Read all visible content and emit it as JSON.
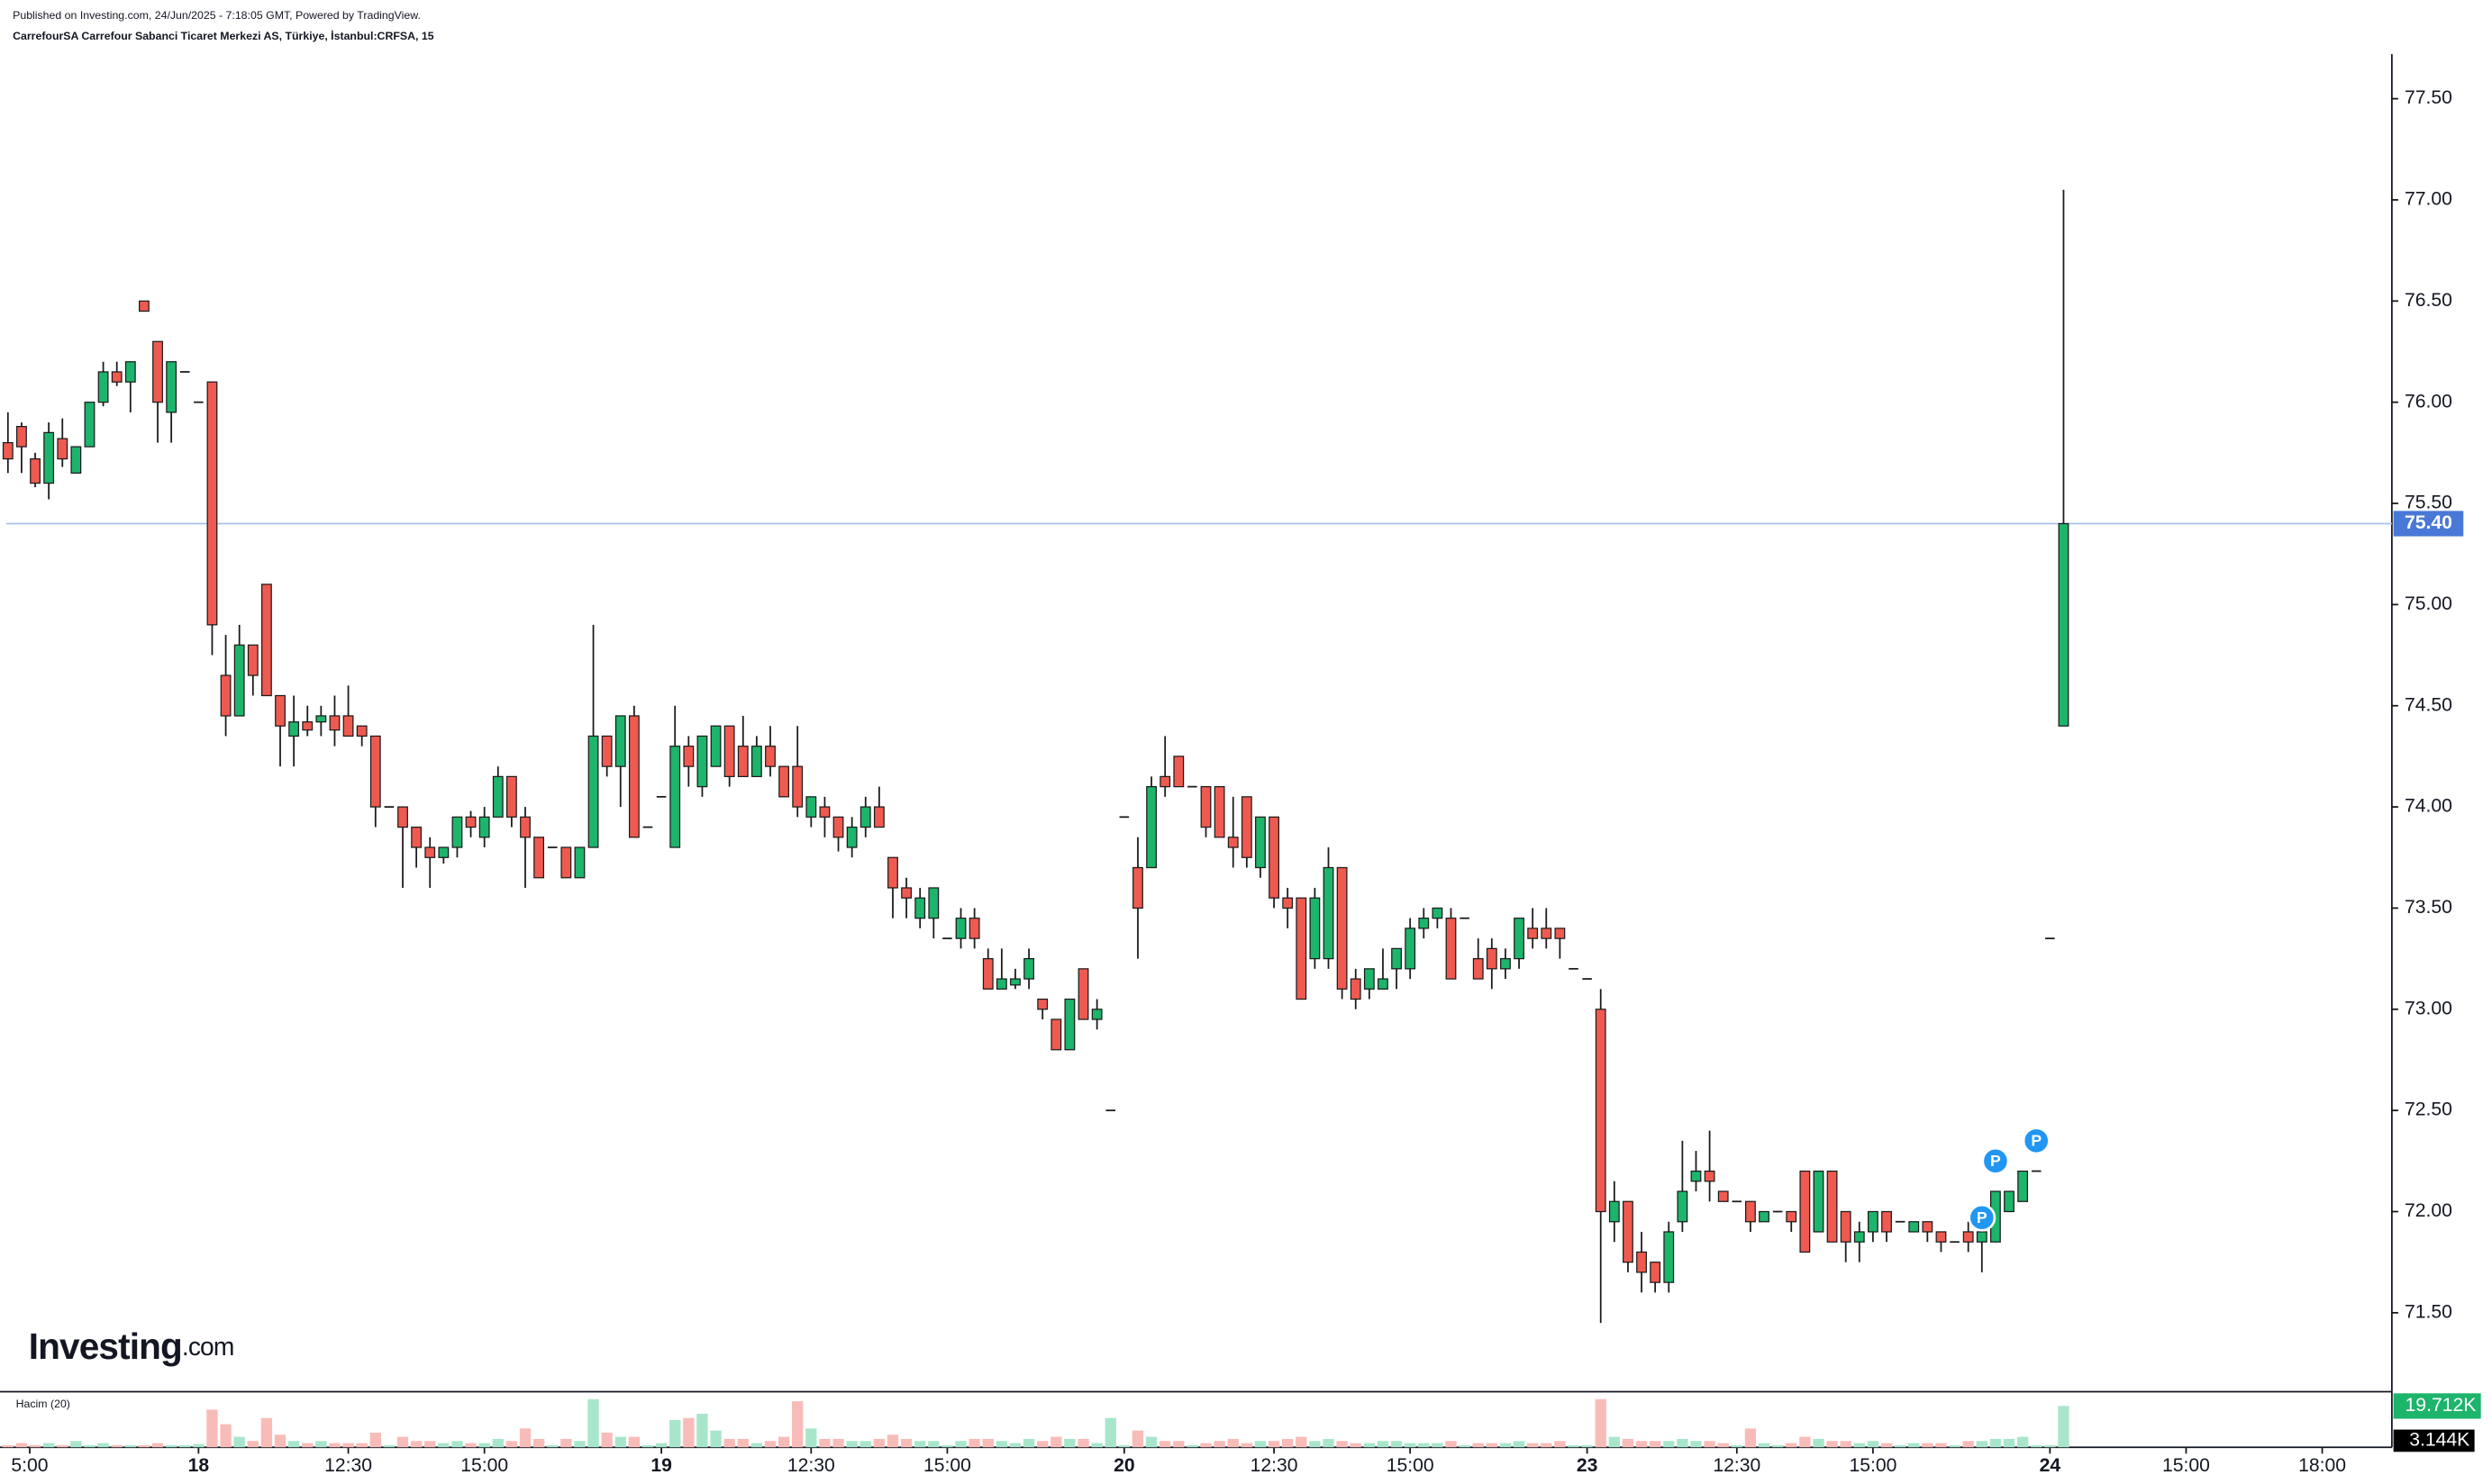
{
  "chart_data": {
    "type": "candlestick",
    "subtitle": "Published on Investing.com, 24/Jun/2025 - 7:18:05 GMT, Powered by TradingView.",
    "title": "CarrefourSA Carrefour Sabanci Ticaret Merkezi AS, Türkiye, İstanbul:CRFSA, 15",
    "watermark": {
      "main": "Investing",
      "suffix": ".com"
    },
    "grid": false,
    "x": [
      -14,
      -13,
      -12,
      -11,
      -10,
      -9,
      -8,
      -7,
      -6,
      -5,
      -4,
      -3,
      -2,
      -1,
      0,
      1,
      2,
      3,
      4,
      5,
      6,
      7,
      8,
      9,
      10,
      11,
      12,
      13,
      14,
      15,
      16,
      17,
      18,
      19,
      20,
      21,
      22,
      23,
      24,
      25,
      26,
      27,
      28,
      29,
      30,
      31,
      32,
      33,
      34,
      35,
      36,
      37,
      38,
      39,
      40,
      41,
      42,
      43,
      44,
      45,
      46,
      47,
      48,
      49,
      50,
      51,
      52,
      53,
      54,
      55,
      56,
      57,
      58,
      59,
      60,
      61,
      62,
      63,
      64,
      65,
      66,
      67,
      68,
      69,
      70,
      71,
      72,
      73,
      74,
      75,
      76,
      77,
      78,
      79,
      80,
      81,
      82,
      83,
      84,
      85,
      86,
      87,
      88,
      89,
      90,
      91,
      92,
      93,
      94,
      95,
      96,
      97,
      98,
      99,
      100,
      101,
      102,
      103,
      104,
      105,
      106,
      107,
      108,
      109,
      110,
      111,
      112,
      113,
      114,
      115,
      116,
      117,
      118,
      119,
      120,
      121,
      122,
      123,
      124,
      125,
      126,
      127,
      128,
      129,
      130,
      131,
      132,
      133,
      134,
      135,
      136,
      137
    ],
    "xlim": [
      -14,
      161
    ],
    "xticks": [
      {
        "value": -12.4,
        "label": "5:00"
      },
      {
        "value": 0,
        "label": "18"
      },
      {
        "value": 11,
        "label": "12:30"
      },
      {
        "value": 21,
        "label": "15:00"
      },
      {
        "value": 34,
        "label": "19"
      },
      {
        "value": 45,
        "label": "12:30"
      },
      {
        "value": 55,
        "label": "15:00"
      },
      {
        "value": 68,
        "label": "20"
      },
      {
        "value": 79,
        "label": "12:30"
      },
      {
        "value": 89,
        "label": "15:00"
      },
      {
        "value": 102,
        "label": "23"
      },
      {
        "value": 113,
        "label": "12:30"
      },
      {
        "value": 123,
        "label": "15:00"
      },
      {
        "value": 136,
        "label": "24"
      },
      {
        "value": 146,
        "label": "15:00"
      },
      {
        "value": 156,
        "label": "18:00"
      }
    ],
    "ylim": [
      71.11,
      77.72
    ],
    "yticks": [
      {
        "value": 71.5,
        "label": "71.50"
      },
      {
        "value": 72,
        "label": "72.00"
      },
      {
        "value": 72.5,
        "label": "72.50"
      },
      {
        "value": 73,
        "label": "73.00"
      },
      {
        "value": 73.5,
        "label": "73.50"
      },
      {
        "value": 74,
        "label": "74.00"
      },
      {
        "value": 74.5,
        "label": "74.50"
      },
      {
        "value": 75,
        "label": "75.00"
      },
      {
        "value": 75.5,
        "label": "75.50"
      },
      {
        "value": 76,
        "label": "76.00"
      },
      {
        "value": 76.5,
        "label": "76.50"
      },
      {
        "value": 77,
        "label": "77.00"
      },
      {
        "value": 77.5,
        "label": "77.50"
      }
    ],
    "y2lim": [
      0,
      25.8
    ],
    "price_line": {
      "value": 75.4,
      "label": "75.40",
      "color": "#4a78d6"
    },
    "volume_ma": {
      "value": 3.144,
      "label": "3.144K"
    },
    "markers": [
      {
        "x": 131,
        "y": 71.97,
        "label": "P"
      },
      {
        "x": 132,
        "y": 72.25,
        "label": "P"
      },
      {
        "x": 135,
        "y": 72.35,
        "label": "P"
      }
    ],
    "series": [
      {
        "up_color": "#1db46c",
        "down_color": "#ef5a50",
        "open": [
          75.8,
          75.88,
          75.72,
          75.6,
          75.82,
          75.65,
          75.78,
          76.0,
          76.15,
          76.1,
          76.5,
          76.3,
          75.95,
          76.15,
          76.0,
          76.1,
          74.65,
          74.45,
          74.8,
          75.1,
          74.55,
          74.35,
          74.42,
          74.42,
          74.45,
          74.45,
          74.4,
          74.35,
          74.0,
          74.0,
          73.9,
          73.8,
          73.75,
          73.8,
          73.95,
          73.85,
          73.95,
          74.15,
          73.95,
          73.85,
          73.8,
          73.8,
          73.65,
          73.8,
          74.35,
          74.2,
          74.45,
          73.9,
          74.05,
          73.8,
          74.3,
          74.1,
          74.2,
          74.4,
          74.3,
          74.15,
          74.3,
          74.2,
          74.2,
          73.95,
          74.0,
          73.95,
          73.8,
          73.9,
          74.0,
          73.75,
          73.6,
          73.45,
          73.45,
          73.35,
          73.35,
          73.45,
          73.25,
          73.1,
          73.12,
          73.15,
          73.05,
          72.95,
          72.8,
          73.2,
          72.95,
          72.5,
          73.95,
          73.7,
          73.7,
          74.15,
          74.25,
          74.1,
          74.1,
          74.1,
          73.85,
          74.05,
          73.7,
          73.95,
          73.55,
          73.55,
          73.25,
          73.25,
          73.7,
          73.15,
          73.1,
          73.1,
          73.2,
          73.2,
          73.4,
          73.45,
          73.45,
          73.45,
          73.25,
          73.3,
          73.2,
          73.25,
          73.4,
          73.4,
          73.4,
          73.2,
          73.15,
          73.0,
          71.95,
          72.05,
          71.8,
          71.75,
          71.65,
          71.95,
          72.15,
          72.2,
          72.1,
          72.05,
          72.05,
          71.95,
          72.0,
          72.0,
          72.2,
          71.9,
          72.2,
          72.0,
          71.85,
          71.9,
          72.0,
          71.95,
          71.9,
          71.95,
          71.9,
          71.85,
          71.9,
          71.85,
          71.85,
          72.0,
          72.05,
          72.2,
          73.35,
          74.4
        ],
        "high": [
          75.95,
          75.9,
          75.75,
          75.9,
          75.92,
          75.78,
          76.0,
          76.2,
          76.2,
          76.2,
          76.5,
          76.3,
          76.2,
          76.15,
          76.0,
          76.1,
          74.85,
          74.9,
          74.8,
          75.1,
          74.55,
          74.55,
          74.5,
          74.5,
          74.55,
          74.6,
          74.4,
          74.35,
          74.0,
          74.0,
          73.9,
          73.85,
          73.8,
          73.95,
          73.98,
          74.0,
          74.2,
          74.15,
          74.0,
          73.85,
          73.8,
          73.8,
          73.8,
          74.9,
          74.35,
          74.45,
          74.5,
          73.9,
          74.05,
          74.5,
          74.35,
          74.35,
          74.4,
          74.4,
          74.45,
          74.35,
          74.4,
          74.2,
          74.4,
          74.05,
          74.05,
          73.95,
          73.95,
          74.05,
          74.1,
          73.75,
          73.65,
          73.6,
          73.6,
          73.35,
          73.5,
          73.5,
          73.3,
          73.3,
          73.2,
          73.3,
          73.05,
          72.95,
          73.05,
          73.2,
          73.05,
          72.5,
          73.95,
          73.85,
          74.15,
          74.35,
          74.25,
          74.1,
          74.1,
          74.1,
          74.05,
          74.05,
          73.95,
          73.95,
          73.6,
          73.55,
          73.6,
          73.8,
          73.7,
          73.2,
          73.2,
          73.3,
          73.3,
          73.45,
          73.5,
          73.5,
          73.5,
          73.45,
          73.35,
          73.35,
          73.3,
          73.45,
          73.5,
          73.5,
          73.4,
          73.2,
          73.15,
          73.1,
          72.15,
          72.05,
          71.9,
          71.75,
          71.95,
          72.35,
          72.3,
          72.4,
          72.1,
          72.05,
          72.05,
          72.0,
          72.0,
          72.0,
          72.2,
          72.2,
          72.2,
          72.0,
          71.95,
          72.0,
          72.0,
          71.95,
          71.95,
          71.95,
          71.9,
          71.85,
          71.95,
          71.95,
          72.1,
          72.1,
          72.2,
          72.2,
          73.35,
          77.05
        ],
        "low": [
          75.65,
          75.65,
          75.58,
          75.52,
          75.68,
          75.65,
          75.78,
          75.98,
          76.08,
          75.95,
          76.45,
          75.8,
          75.8,
          76.15,
          76.0,
          74.75,
          74.35,
          74.45,
          74.55,
          74.55,
          74.2,
          74.2,
          74.35,
          74.35,
          74.3,
          74.35,
          74.3,
          73.9,
          74.0,
          73.6,
          73.7,
          73.6,
          73.72,
          73.75,
          73.85,
          73.8,
          73.95,
          73.9,
          73.6,
          73.65,
          73.8,
          73.65,
          73.65,
          73.8,
          74.15,
          74.0,
          73.85,
          73.9,
          74.05,
          73.8,
          74.1,
          74.05,
          74.2,
          74.1,
          74.15,
          74.15,
          74.15,
          74.05,
          73.95,
          73.9,
          73.85,
          73.78,
          73.75,
          73.85,
          73.9,
          73.45,
          73.45,
          73.4,
          73.35,
          73.35,
          73.3,
          73.3,
          73.1,
          73.1,
          73.1,
          73.1,
          72.95,
          72.8,
          72.8,
          72.95,
          72.9,
          72.5,
          73.95,
          73.25,
          73.7,
          74.05,
          74.1,
          74.1,
          73.85,
          73.85,
          73.7,
          73.7,
          73.65,
          73.5,
          73.4,
          73.05,
          73.2,
          73.2,
          73.05,
          73.0,
          73.05,
          73.1,
          73.1,
          73.15,
          73.35,
          73.4,
          73.15,
          73.45,
          73.15,
          73.1,
          73.15,
          73.2,
          73.3,
          73.3,
          73.25,
          73.2,
          73.15,
          71.45,
          71.85,
          71.7,
          71.6,
          71.6,
          71.6,
          71.9,
          72.1,
          72.05,
          72.05,
          72.05,
          71.9,
          71.95,
          72.0,
          71.9,
          71.8,
          71.9,
          71.85,
          71.75,
          71.75,
          71.85,
          71.85,
          71.95,
          71.9,
          71.85,
          71.8,
          71.85,
          71.8,
          71.7,
          71.85,
          72.0,
          72.05,
          72.2,
          73.35,
          74.4
        ],
        "close": [
          75.72,
          75.78,
          75.6,
          75.85,
          75.72,
          75.78,
          76.0,
          76.15,
          76.1,
          76.2,
          76.45,
          76.0,
          76.2,
          76.15,
          76.0,
          74.9,
          74.45,
          74.8,
          74.65,
          74.55,
          74.4,
          74.42,
          74.38,
          74.45,
          74.38,
          74.35,
          74.35,
          74.0,
          74.0,
          73.9,
          73.8,
          73.75,
          73.8,
          73.95,
          73.9,
          73.95,
          74.15,
          73.95,
          73.85,
          73.65,
          73.8,
          73.65,
          73.8,
          74.35,
          74.2,
          74.45,
          73.85,
          73.9,
          74.05,
          74.3,
          74.2,
          74.35,
          74.4,
          74.15,
          74.15,
          74.3,
          74.2,
          74.05,
          74.0,
          74.05,
          73.95,
          73.85,
          73.9,
          74.0,
          73.9,
          73.6,
          73.55,
          73.55,
          73.6,
          73.35,
          73.45,
          73.35,
          73.1,
          73.15,
          73.15,
          73.25,
          73.0,
          72.8,
          73.05,
          72.95,
          73.0,
          72.5,
          73.95,
          73.5,
          74.1,
          74.1,
          74.1,
          74.1,
          73.9,
          73.85,
          73.8,
          73.75,
          73.95,
          73.55,
          73.5,
          73.05,
          73.55,
          73.7,
          73.1,
          73.05,
          73.2,
          73.15,
          73.3,
          73.4,
          73.45,
          73.5,
          73.15,
          73.45,
          73.15,
          73.2,
          73.25,
          73.45,
          73.35,
          73.35,
          73.35,
          73.2,
          73.15,
          72.0,
          72.05,
          71.75,
          71.7,
          71.65,
          71.9,
          72.1,
          72.2,
          72.15,
          72.05,
          72.05,
          71.95,
          72.0,
          72.0,
          71.95,
          71.8,
          72.2,
          71.85,
          71.85,
          71.9,
          72.0,
          71.9,
          71.95,
          71.95,
          71.9,
          71.85,
          71.85,
          71.85,
          71.9,
          72.1,
          72.1,
          72.2,
          72.2,
          73.35,
          75.4
        ]
      },
      {
        "name": "Hacim (20)",
        "axis": "y2",
        "up_color": "#a8e6cb",
        "down_color": "#f8bcb8",
        "values": [
          1,
          2,
          1,
          2,
          1,
          3,
          1,
          2,
          1,
          1,
          1,
          2,
          1,
          1,
          1.5,
          18,
          11,
          5,
          3,
          14,
          6,
          3,
          2,
          3,
          2,
          2,
          2,
          7,
          1,
          5,
          3,
          3,
          2,
          3,
          2,
          2,
          4,
          3,
          9,
          4,
          1,
          4,
          3,
          23,
          7,
          5,
          5,
          1,
          2,
          13,
          14,
          16,
          8,
          4,
          4,
          2,
          3,
          5,
          22,
          9,
          4,
          4,
          3,
          3,
          4,
          6,
          4,
          3,
          3,
          1,
          3,
          4,
          4,
          3,
          2,
          4,
          3,
          5,
          4,
          4,
          2,
          14,
          1,
          8,
          5,
          3,
          3,
          1,
          2,
          3,
          4,
          2,
          3,
          3,
          4,
          5,
          3,
          4,
          3,
          2,
          2,
          3,
          3,
          2,
          2,
          2,
          3,
          1,
          2,
          2,
          2,
          3,
          2,
          2,
          3,
          1,
          1,
          23,
          5,
          4,
          3,
          3,
          3,
          4,
          3,
          3,
          2,
          1,
          9,
          2,
          1,
          2,
          5,
          4,
          3,
          3,
          2,
          3,
          2,
          1,
          2,
          2,
          2,
          1,
          3,
          3,
          4,
          4,
          5,
          1,
          1,
          19.712
        ],
        "value_labels": [
          null,
          null,
          null,
          null,
          null,
          null,
          null,
          null,
          null,
          null,
          null,
          null,
          null,
          null,
          null,
          null,
          null,
          null,
          null,
          null,
          null,
          null,
          null,
          null,
          null,
          null,
          null,
          null,
          null,
          null,
          null,
          null,
          null,
          null,
          null,
          null,
          null,
          null,
          null,
          null,
          null,
          null,
          null,
          null,
          null,
          null,
          null,
          null,
          null,
          null,
          null,
          null,
          null,
          null,
          null,
          null,
          null,
          null,
          null,
          null,
          null,
          null,
          null,
          null,
          null,
          null,
          null,
          null,
          null,
          null,
          null,
          null,
          null,
          null,
          null,
          null,
          null,
          null,
          null,
          null,
          null,
          null,
          null,
          null,
          null,
          null,
          null,
          null,
          null,
          null,
          null,
          null,
          null,
          null,
          null,
          null,
          null,
          null,
          null,
          null,
          null,
          null,
          null,
          null,
          null,
          null,
          null,
          null,
          null,
          null,
          null,
          null,
          null,
          null,
          null,
          null,
          null,
          null,
          null,
          null,
          null,
          null,
          null,
          null,
          null,
          null,
          null,
          null,
          null,
          null,
          null,
          null,
          null,
          null,
          null,
          null,
          null,
          null,
          null,
          null,
          null,
          null,
          null,
          null,
          null,
          null,
          null,
          null,
          null,
          null,
          null,
          "19.712K"
        ]
      }
    ]
  }
}
